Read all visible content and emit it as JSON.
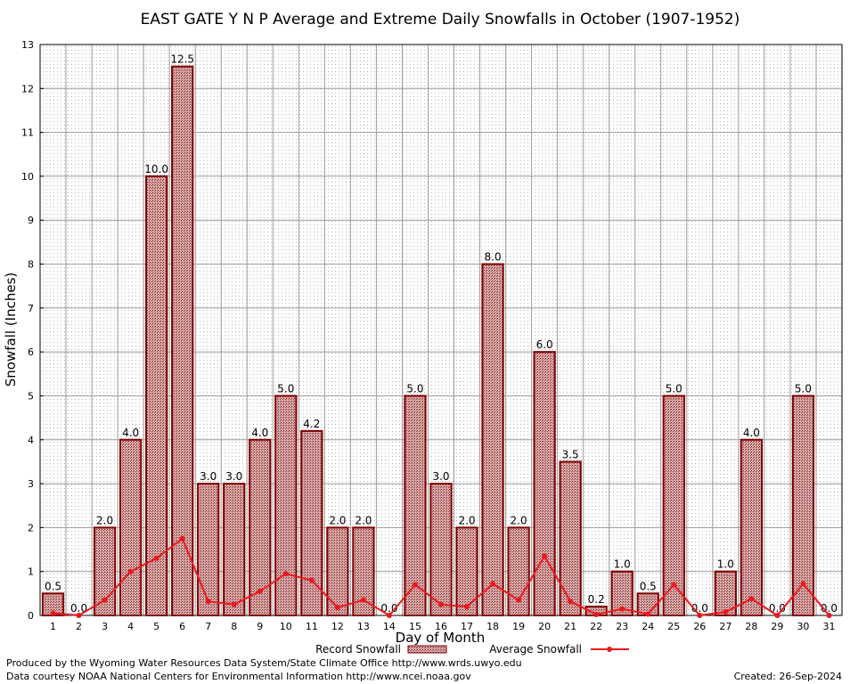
{
  "chart_data": {
    "type": "bar",
    "title": "EAST GATE Y N P Average and Extreme Daily Snowfalls in October (1907-1952)",
    "xlabel": "Day of Month",
    "ylabel": "Snowfall (Inches)",
    "ylim": [
      0,
      13
    ],
    "yticks": [
      "0",
      "1",
      "2",
      "3",
      "4",
      "5",
      "6",
      "7",
      "8",
      "9",
      "10",
      "11",
      "12",
      "13"
    ],
    "grid": true,
    "categories": [
      "1",
      "2",
      "3",
      "4",
      "5",
      "6",
      "7",
      "8",
      "9",
      "10",
      "11",
      "12",
      "13",
      "14",
      "15",
      "16",
      "17",
      "18",
      "19",
      "20",
      "21",
      "22",
      "23",
      "24",
      "25",
      "26",
      "27",
      "28",
      "29",
      "30",
      "31"
    ],
    "series": [
      {
        "name": "Record Snowfall",
        "kind": "bar",
        "values": [
          0.5,
          0.0,
          2.0,
          4.0,
          10.0,
          12.5,
          3.0,
          3.0,
          4.0,
          5.0,
          4.2,
          2.0,
          2.0,
          0.0,
          5.0,
          3.0,
          2.0,
          8.0,
          2.0,
          6.0,
          3.5,
          0.2,
          1.0,
          0.5,
          5.0,
          0.0,
          1.0,
          4.0,
          0.0,
          5.0,
          0.0
        ],
        "labels": [
          "0.5",
          "0.0",
          "2.0",
          "4.0",
          "10.0",
          "12.5",
          "3.0",
          "3.0",
          "4.0",
          "5.0",
          "4.2",
          "2.0",
          "2.0",
          "0.0",
          "5.0",
          "3.0",
          "2.0",
          "8.0",
          "2.0",
          "6.0",
          "3.5",
          "0.2",
          "1.0",
          "0.5",
          "5.0",
          "0.0",
          "1.0",
          "4.0",
          "0.0",
          "5.0",
          "0.0"
        ]
      },
      {
        "name": "Average Snowfall",
        "kind": "line",
        "values": [
          0.05,
          0.0,
          0.35,
          1.0,
          1.3,
          1.75,
          0.32,
          0.25,
          0.55,
          0.95,
          0.8,
          0.18,
          0.35,
          0.0,
          0.7,
          0.25,
          0.2,
          0.72,
          0.35,
          1.35,
          0.32,
          0.02,
          0.15,
          0.03,
          0.7,
          0.0,
          0.08,
          0.38,
          0.0,
          0.72,
          0.0
        ]
      }
    ],
    "colors": {
      "bar_fill": "#c89090",
      "bar_stroke": "#800000",
      "line": "#e8191e",
      "grid": "#9c9c9c"
    },
    "legend_position": "bottom"
  },
  "footer": {
    "produced_by": "Produced by the Wyoming Water Resources Data System/State Climate Office http://www.wrds.uwyo.edu",
    "data_courtesy": "Data courtesy NOAA National Centers for Environmental Information http://www.ncei.noaa.gov",
    "created": "Created:  26-Sep-2024"
  }
}
